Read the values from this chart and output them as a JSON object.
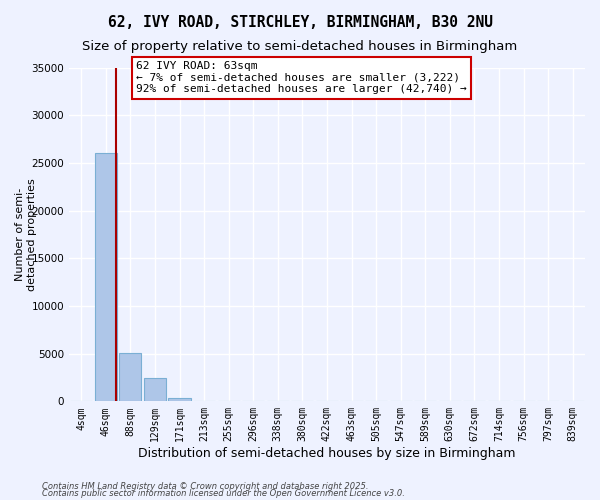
{
  "title": "62, IVY ROAD, STIRCHLEY, BIRMINGHAM, B30 2NU",
  "subtitle": "Size of property relative to semi-detached houses in Birmingham",
  "xlabel": "Distribution of semi-detached houses by size in Birmingham",
  "ylabel": "Number of semi-\ndetached properties",
  "categories": [
    "4sqm",
    "46sqm",
    "88sqm",
    "129sqm",
    "171sqm",
    "213sqm",
    "255sqm",
    "296sqm",
    "338sqm",
    "380sqm",
    "422sqm",
    "463sqm",
    "505sqm",
    "547sqm",
    "589sqm",
    "630sqm",
    "672sqm",
    "714sqm",
    "756sqm",
    "797sqm",
    "839sqm"
  ],
  "values": [
    50,
    26100,
    5100,
    2500,
    300,
    0,
    0,
    0,
    0,
    0,
    0,
    0,
    0,
    0,
    0,
    0,
    0,
    0,
    0,
    0,
    0
  ],
  "bar_color": "#aec6e8",
  "bar_edge_color": "#7aafd4",
  "vline_color": "#aa0000",
  "ylim": [
    0,
    35000
  ],
  "yticks": [
    0,
    5000,
    10000,
    15000,
    20000,
    25000,
    30000,
    35000
  ],
  "annotation_text": "62 IVY ROAD: 63sqm\n← 7% of semi-detached houses are smaller (3,222)\n92% of semi-detached houses are larger (42,740) →",
  "footnote1": "Contains HM Land Registry data © Crown copyright and database right 2025.",
  "footnote2": "Contains public sector information licensed under the Open Government Licence v3.0.",
  "background_color": "#eef2ff",
  "plot_background": "#eef2ff",
  "grid_color": "#ffffff",
  "title_fontsize": 10.5,
  "subtitle_fontsize": 9.5,
  "tick_fontsize": 7,
  "ylabel_fontsize": 8,
  "xlabel_fontsize": 9,
  "annotation_fontsize": 8,
  "footnote_fontsize": 6
}
